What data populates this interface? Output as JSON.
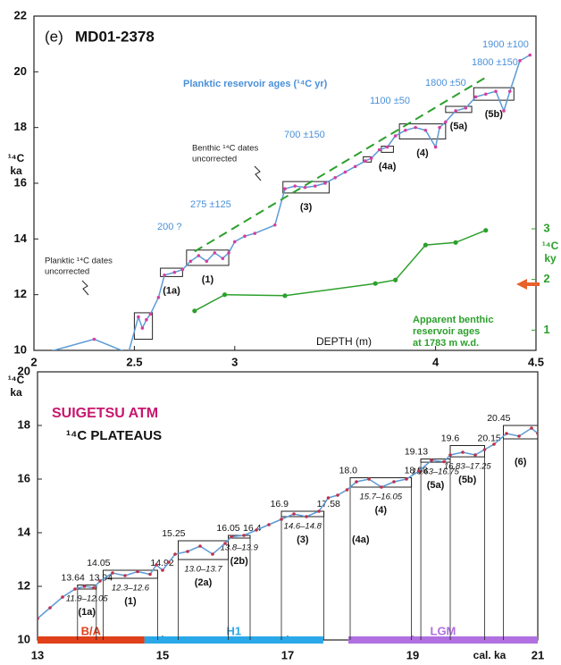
{
  "chart_data": [
    {
      "type": "line",
      "panel": "(e)",
      "title": "MD01-2378",
      "x_label": "DEPTH (m)",
      "y_label": "¹⁴C ka",
      "y2_label": "¹⁴C ky",
      "xlim": [
        2,
        4.5
      ],
      "ylim": [
        10,
        22
      ],
      "y2lim": [
        0.6,
        7.2
      ],
      "xticks": [
        2,
        2.5,
        3,
        4,
        4.5
      ],
      "yticks": [
        10,
        12,
        14,
        16,
        18,
        20,
        22
      ],
      "y2ticks": [
        1,
        2,
        3
      ],
      "series": [
        {
          "color": "#5b9bd5",
          "marker_color": "#d63fa0",
          "x": [
            2.0,
            2.3,
            2.47,
            2.52,
            2.54,
            2.56,
            2.58,
            2.62,
            2.65,
            2.7,
            2.74,
            2.78,
            2.82,
            2.86,
            2.9,
            2.94,
            2.97,
            3.0,
            3.05,
            3.1,
            3.2,
            3.25,
            3.3,
            3.35,
            3.4,
            3.45,
            3.5,
            3.55,
            3.6,
            3.65,
            3.68,
            3.72,
            3.76,
            3.8,
            3.85,
            3.9,
            3.95,
            4.0,
            4.02,
            4.05,
            4.1,
            4.15,
            4.2,
            4.25,
            4.3,
            4.34,
            4.37,
            4.42,
            4.47
          ],
          "values": [
            9.8,
            10.4,
            9.9,
            11.2,
            10.8,
            11.1,
            11.3,
            11.9,
            12.7,
            12.8,
            12.9,
            13.2,
            13.4,
            13.2,
            13.5,
            13.3,
            13.5,
            13.9,
            14.1,
            14.2,
            14.5,
            15.8,
            15.9,
            15.85,
            15.9,
            16.0,
            16.2,
            16.4,
            16.6,
            16.8,
            16.9,
            17.2,
            17.3,
            17.7,
            17.9,
            18.0,
            17.9,
            17.3,
            18.0,
            18.2,
            18.6,
            18.7,
            19.1,
            19.2,
            19.3,
            18.6,
            19.3,
            20.4,
            20.6
          ]
        },
        {
          "color": "#2ca02c",
          "dashed": true,
          "x": [
            2.8,
            4.25
          ],
          "values": [
            13.55,
            19.8
          ]
        },
        {
          "color": "#2ca02c",
          "marker_color": "#2ca02c",
          "axis": "y2",
          "x": [
            2.8,
            2.95,
            3.25,
            3.7,
            3.8,
            3.95,
            4.1,
            4.25
          ],
          "values": [
            1.38,
            1.7,
            1.68,
            1.92,
            1.99,
            2.68,
            2.73,
            2.97
          ]
        }
      ],
      "plateaus": [
        {
          "x": [
            2.5,
            2.59
          ],
          "y": [
            10.4,
            11.35
          ]
        },
        {
          "label": "(1a)",
          "x": [
            2.63,
            2.74
          ],
          "y": [
            12.65,
            12.95
          ]
        },
        {
          "label": "(1)",
          "x": [
            2.76,
            2.97
          ],
          "y": [
            13.05,
            13.6
          ]
        },
        {
          "label": "(3)",
          "x": [
            3.24,
            3.47
          ],
          "y": [
            15.65,
            16.06
          ]
        },
        {
          "x": [
            3.64,
            3.68
          ],
          "y": [
            16.76,
            16.95
          ]
        },
        {
          "label": "(4a)",
          "x": [
            3.73,
            3.79
          ],
          "y": [
            17.11,
            17.33
          ]
        },
        {
          "label": "(4)",
          "x": [
            3.82,
            4.05
          ],
          "y": [
            17.59,
            18.13
          ]
        },
        {
          "label": "(5a)",
          "x": [
            4.05,
            4.18
          ],
          "y": [
            18.54,
            18.76
          ]
        },
        {
          "label": "(5b)",
          "x": [
            4.19,
            4.39
          ],
          "y": [
            18.98,
            19.43
          ]
        }
      ],
      "annotations": [
        {
          "text": "Planktic reservoir ages (¹⁴C yr)",
          "color": "#4a90d9"
        },
        {
          "text": "200 ?",
          "color": "#4a90d9"
        },
        {
          "text": "275 ±125",
          "color": "#4a90d9"
        },
        {
          "text": "700 ±150",
          "color": "#4a90d9"
        },
        {
          "text": "1100 ±50",
          "color": "#4a90d9"
        },
        {
          "text": "1800 ±50",
          "color": "#4a90d9"
        },
        {
          "text": "1800 ±150",
          "color": "#4a90d9"
        },
        {
          "text": "1900 ±100",
          "color": "#4a90d9"
        },
        {
          "text": "Benthic ¹⁴C dates",
          "color": "#222222"
        },
        {
          "text": "uncorrected",
          "color": "#222222"
        },
        {
          "text": "Planktic ¹⁴C dates",
          "color": "#222222"
        },
        {
          "text": "uncorrected",
          "color": "#222222"
        },
        {
          "text": "Apparent benthic",
          "color": "#2ca02c"
        },
        {
          "text": "reservoir ages",
          "color": "#2ca02c"
        },
        {
          "text": "at 1783 m w.d.",
          "color": "#2ca02c"
        }
      ]
    },
    {
      "type": "line",
      "x_label": "cal. ka",
      "y_label": "¹⁴C ka",
      "xlim": [
        13,
        21
      ],
      "ylim": [
        10,
        20
      ],
      "xticks": [
        13,
        15,
        17,
        19,
        21
      ],
      "yticks": [
        10,
        12,
        14,
        16,
        18,
        20
      ],
      "series": [
        {
          "color": "#5b9bd5",
          "marker_color": "#c0304a",
          "x": [
            13.0,
            13.2,
            13.4,
            13.6,
            13.75,
            13.9,
            14.0,
            14.2,
            14.4,
            14.6,
            14.8,
            14.9,
            15.0,
            15.1,
            15.2,
            15.4,
            15.6,
            15.8,
            16.0,
            16.1,
            16.3,
            16.5,
            16.7,
            16.9,
            17.1,
            17.3,
            17.5,
            17.65,
            17.8,
            17.95,
            18.1,
            18.3,
            18.5,
            18.7,
            18.9,
            19.1,
            19.3,
            19.5,
            19.6,
            19.8,
            20.0,
            20.15,
            20.3,
            20.5,
            20.7,
            20.9,
            21.0
          ],
          "values": [
            10.8,
            11.2,
            11.6,
            11.9,
            12.0,
            11.95,
            12.2,
            12.5,
            12.4,
            12.55,
            12.45,
            12.8,
            12.6,
            12.9,
            13.2,
            13.3,
            13.5,
            13.2,
            13.6,
            13.85,
            13.9,
            14.1,
            14.3,
            14.5,
            14.7,
            14.6,
            14.8,
            15.3,
            15.4,
            15.6,
            15.9,
            16.0,
            15.7,
            15.9,
            16.0,
            16.3,
            16.7,
            16.65,
            16.9,
            17.0,
            16.9,
            17.1,
            17.3,
            17.7,
            17.6,
            17.9,
            17.7
          ]
        }
      ],
      "plateaus": [
        {
          "label": "(1a)",
          "x": [
            13.64,
            13.94
          ],
          "y": [
            11.9,
            12.05
          ],
          "range_label": "11.9–12.05"
        },
        {
          "label": "(1)",
          "x": [
            14.05,
            14.92
          ],
          "y": [
            12.3,
            12.6
          ],
          "range_label": "12.3–12.6"
        },
        {
          "label": "(2a)",
          "x": [
            15.25,
            16.05
          ],
          "y": [
            13.0,
            13.7
          ],
          "range_label": "13.0–13.7"
        },
        {
          "label": "(2b)",
          "x": [
            16.05,
            16.4
          ],
          "y": [
            13.8,
            13.9
          ],
          "range_label": "13.8–13.9"
        },
        {
          "label": "(3)",
          "x": [
            16.9,
            17.58
          ],
          "y": [
            14.6,
            14.8
          ],
          "range_label": "14.6–14.8"
        },
        {
          "label": "(4)",
          "x": [
            18,
            18.98
          ],
          "y": [
            15.7,
            16.05
          ],
          "range_label": "15.7–16.05"
        },
        {
          "label": "(5a)",
          "x": [
            19.13,
            19.6
          ],
          "y": [
            16.63,
            16.75
          ],
          "range_label": "16.63–16.75"
        },
        {
          "label": "(5b)",
          "x": [
            19.6,
            20.15
          ],
          "y": [
            16.83,
            17.25
          ],
          "range_label": "16.83–17.25"
        },
        {
          "label": "(6)",
          "x": [
            20.45,
            21
          ],
          "y": [
            17.5,
            18
          ]
        }
      ],
      "boundaries": [
        13.64,
        13.94,
        14.05,
        14.92,
        15.25,
        16.05,
        16.4,
        16.9,
        17.58,
        {
          "value": 18,
          "label": "18.0"
        },
        18.98,
        19.13,
        19.6,
        20.15,
        20.45
      ],
      "periods": [
        {
          "name": "B/A",
          "color": "#e0401a",
          "x": [
            13,
            14.71
          ]
        },
        {
          "name": "H1",
          "color": "#2aa8e8",
          "x": [
            14.71,
            17.57
          ]
        },
        {
          "name": "LGM",
          "color": "#b070e0",
          "x": [
            17.97,
            21
          ]
        }
      ],
      "annotations": [
        {
          "text": "SUIGETSU ATM",
          "color": "#c8166e"
        },
        {
          "text": "¹⁴C PLATEAUS",
          "color": "#111111"
        },
        {
          "text": "(4a)",
          "color": "#111111"
        }
      ]
    }
  ]
}
